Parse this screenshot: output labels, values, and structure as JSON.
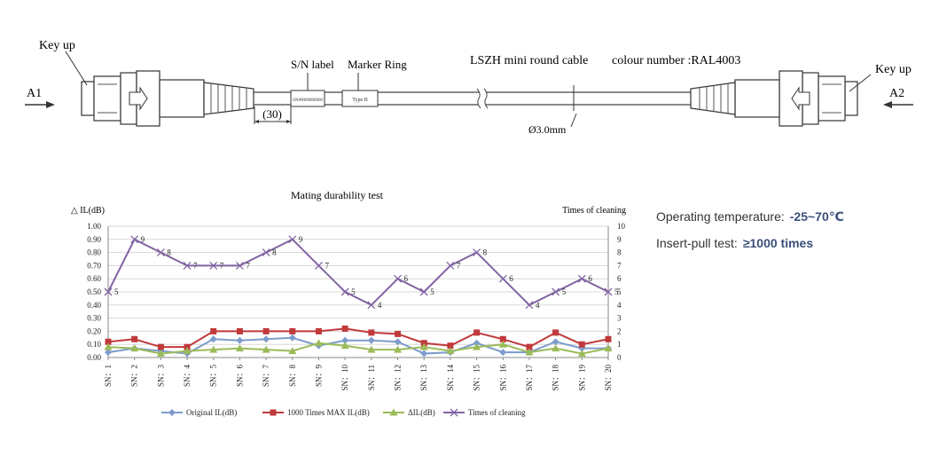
{
  "diagram": {
    "label_key_up_left": "Key up",
    "label_key_up_right": "Key up",
    "label_a1": "A1",
    "label_a2": "A2",
    "label_sn": "S/N label",
    "label_marker": "Marker Ring",
    "label_cable": "LSZH mini round cable",
    "label_colour": "colour number :RAL4003",
    "dim_30": "(30)",
    "dim_dia": "Ø3.0mm",
    "sn_text": "SN#0000000000",
    "marker_text": "Type B"
  },
  "specs": {
    "op_temp_label": "Operating temperature:",
    "op_temp_value": "-25~70℃",
    "insert_label": "Insert-pull test:",
    "insert_value": "≥1000 times"
  },
  "chart_data": {
    "type": "line",
    "title": "Mating durability test",
    "ylabel": "△ IL(dB)",
    "y2label": "Times of cleaning",
    "ylim": [
      0,
      1.0
    ],
    "y2lim": [
      0,
      10
    ],
    "yticks": [
      "0.00",
      "0.10",
      "0.20",
      "0.30",
      "0.40",
      "0.50",
      "0.60",
      "0.70",
      "0.80",
      "0.90",
      "1.00"
    ],
    "y2ticks": [
      "0",
      "1",
      "2",
      "3",
      "4",
      "5",
      "6",
      "7",
      "8",
      "9",
      "10"
    ],
    "categories": [
      "SN：1",
      "SN：2",
      "SN：3",
      "SN：4",
      "SN：5",
      "SN：6",
      "SN：7",
      "SN：8",
      "SN：9",
      "SN：10",
      "SN：11",
      "SN：12",
      "SN：13",
      "SN：14",
      "SN：15",
      "SN：16",
      "SN：17",
      "SN：18",
      "SN：19",
      "SN：20"
    ],
    "legend_position": "bottom",
    "grid": "horizontal",
    "series": [
      {
        "name": "Original IL(dB)",
        "axis": "left",
        "color": "#7c9ccc",
        "marker": "diamond",
        "values": [
          0.04,
          0.07,
          0.05,
          0.03,
          0.14,
          0.13,
          0.14,
          0.15,
          0.09,
          0.13,
          0.13,
          0.12,
          0.03,
          0.04,
          0.11,
          0.04,
          0.04,
          0.12,
          0.07,
          0.07
        ]
      },
      {
        "name": "1000 Times MAX IL(dB)",
        "axis": "left",
        "color": "#c0393b",
        "marker": "square",
        "values": [
          0.12,
          0.14,
          0.08,
          0.08,
          0.2,
          0.2,
          0.2,
          0.2,
          0.2,
          0.22,
          0.19,
          0.18,
          0.11,
          0.09,
          0.19,
          0.14,
          0.08,
          0.19,
          0.1,
          0.14
        ]
      },
      {
        "name": "ΔIL(dB)",
        "axis": "left",
        "color": "#9bbb59",
        "marker": "triangle",
        "values": [
          0.08,
          0.07,
          0.03,
          0.05,
          0.06,
          0.07,
          0.06,
          0.05,
          0.11,
          0.09,
          0.06,
          0.06,
          0.08,
          0.05,
          0.08,
          0.1,
          0.04,
          0.07,
          0.03,
          0.07
        ]
      },
      {
        "name": "Times of cleaning",
        "axis": "right",
        "color": "#8064a2",
        "marker": "x",
        "values": [
          5,
          9,
          8,
          7,
          7,
          7,
          8,
          9,
          7,
          5,
          4,
          6,
          5,
          7,
          8,
          6,
          4,
          5,
          6,
          5
        ],
        "labels": [
          "5",
          "9",
          "8",
          "7",
          "7",
          "7",
          "8",
          "9",
          "7",
          "5",
          "4",
          "6",
          "5",
          "7",
          "8",
          "6",
          "4",
          "5",
          "6",
          "5"
        ]
      }
    ]
  }
}
